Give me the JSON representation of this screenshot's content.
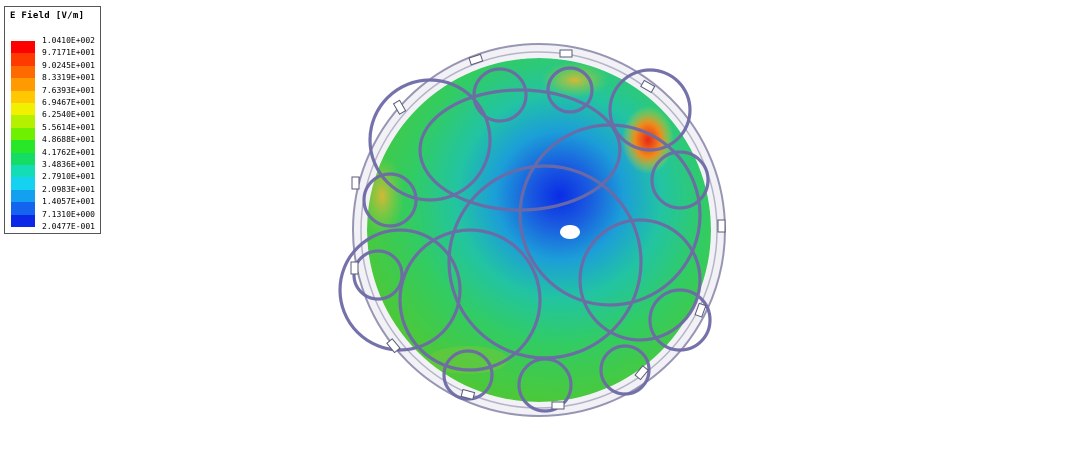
{
  "legend": {
    "title": "E Field [V/m]",
    "ticks": [
      "1.0410E+002",
      "9.7171E+001",
      "9.0245E+001",
      "8.3319E+001",
      "7.6393E+001",
      "6.9467E+001",
      "6.2540E+001",
      "5.5614E+001",
      "4.8688E+001",
      "4.1762E+001",
      "3.4836E+001",
      "2.7910E+001",
      "2.0983E+001",
      "1.4057E+001",
      "7.1310E+000",
      "2.0477E-001"
    ],
    "colors": [
      "#ff0000",
      "#ff3a00",
      "#ff6a00",
      "#ff9a00",
      "#ffc800",
      "#f0f000",
      "#b4f000",
      "#6ef000",
      "#28e628",
      "#14dc64",
      "#14dcb4",
      "#14d2f0",
      "#14a0f0",
      "#1464f0",
      "#0a28e6"
    ]
  },
  "colors": {
    "coil": "#6e6aa6",
    "coil_dark": "#3c3872",
    "rim": "#9696b4",
    "field_low": "#1a3cdc",
    "field_mid": "#2cc878",
    "field_high": "#e62a1a"
  }
}
